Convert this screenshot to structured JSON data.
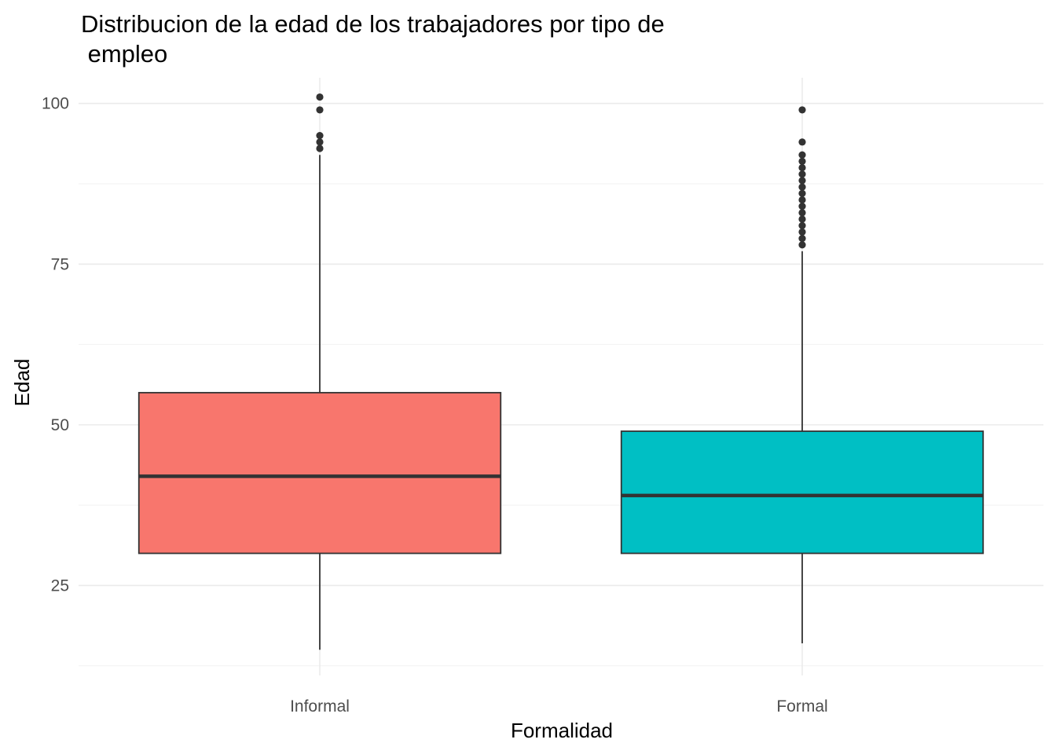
{
  "chart_data": {
    "type": "boxplot",
    "title_lines": [
      "Distribucion de la edad de los trabajadores por tipo de",
      " empleo"
    ],
    "xlabel": "Formalidad",
    "ylabel": "Edad",
    "ylim": [
      11,
      104
    ],
    "yticks": [
      25,
      50,
      75,
      100
    ],
    "yticks_minor": [
      12.5,
      37.5,
      62.5,
      87.5
    ],
    "grid": true,
    "legend": "none",
    "categories": [
      "Informal",
      "Formal"
    ],
    "boxes": [
      {
        "category": "Informal",
        "color": "#F8766D",
        "lower_whisker": 15,
        "q1": 30,
        "median": 42,
        "q3": 55,
        "upper_whisker": 92,
        "outliers": [
          93,
          94,
          95,
          99,
          101
        ]
      },
      {
        "category": "Formal",
        "color": "#00BFC4",
        "lower_whisker": 16,
        "q1": 30,
        "median": 39,
        "q3": 49,
        "upper_whisker": 77,
        "outliers": [
          78,
          79,
          80,
          81,
          82,
          83,
          84,
          85,
          86,
          87,
          88,
          89,
          90,
          91,
          92,
          94,
          99
        ]
      }
    ]
  }
}
